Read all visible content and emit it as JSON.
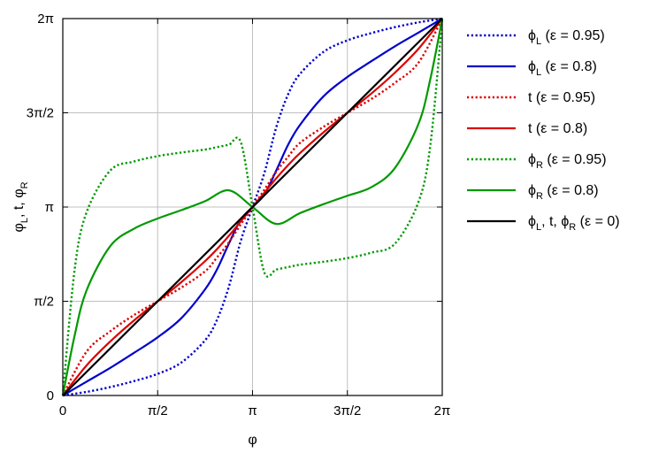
{
  "chart_data": {
    "type": "line",
    "xlabel": "φ",
    "ylabel": {
      "main": "φ",
      "sub1": "L",
      "mid": ", t, φ",
      "sub2": "R"
    },
    "xlim": [
      0,
      6.283185307
    ],
    "ylim": [
      0,
      6.283185307
    ],
    "grid": true,
    "legend_position": "right, outside plot",
    "x_ticks": [
      {
        "value": 0,
        "label": "0"
      },
      {
        "value": 1.570796327,
        "label": "π/2"
      },
      {
        "value": 3.141592654,
        "label": "π"
      },
      {
        "value": 4.71238898,
        "label": "3π/2"
      },
      {
        "value": 6.283185307,
        "label": "2π"
      }
    ],
    "y_ticks": [
      {
        "value": 0,
        "label": "0"
      },
      {
        "value": 1.570796327,
        "label": "π/2"
      },
      {
        "value": 3.141592654,
        "label": "π"
      },
      {
        "value": 4.71238898,
        "label": "3π/2"
      },
      {
        "value": 6.283185307,
        "label": "2π"
      }
    ],
    "series": [
      {
        "name": "φL (ε = 0.95)",
        "legend": {
          "sym": "ϕ",
          "sub": "L",
          "rest": "  (ε = 0.95)"
        },
        "color": "#0000cc",
        "dash": "dotted",
        "x": [
          0,
          0.3927,
          0.7854,
          1.1781,
          1.5708,
          1.9635,
          2.3562,
          2.5525,
          2.7489,
          2.9452,
          3.1416,
          3.3379,
          3.5343,
          3.7306,
          3.927,
          4.3197,
          4.7124,
          5.1051,
          5.4978,
          5.8905,
          6.2832
        ],
        "y": [
          0,
          0.06,
          0.14,
          0.24,
          0.36,
          0.55,
          0.92,
          1.26,
          1.81,
          2.57,
          3.1416,
          3.71,
          4.47,
          5.02,
          5.36,
          5.73,
          5.92,
          6.04,
          6.14,
          6.22,
          6.2832
        ]
      },
      {
        "name": "φL (ε = 0.8)",
        "legend": {
          "sym": "ϕ",
          "sub": "L",
          "rest": "  (ε = 0.8)"
        },
        "color": "#0000cc",
        "dash": "solid",
        "x": [
          0,
          0.3927,
          0.7854,
          1.1781,
          1.5708,
          1.9635,
          2.3562,
          2.5525,
          2.7489,
          2.9452,
          3.1416,
          3.3379,
          3.5343,
          3.7306,
          3.927,
          4.3197,
          4.7124,
          5.1051,
          5.4978,
          5.8905,
          6.2832
        ],
        "y": [
          0,
          0.23,
          0.46,
          0.71,
          0.97,
          1.29,
          1.77,
          2.1,
          2.53,
          2.93,
          3.1416,
          3.35,
          3.75,
          4.18,
          4.51,
          4.99,
          5.31,
          5.57,
          5.82,
          6.05,
          6.2832
        ]
      },
      {
        "name": "t (ε = 0.95)",
        "legend": {
          "sym": "t",
          "sub": "",
          "rest": "  (ε = 0.95)"
        },
        "color": "#dd0000",
        "dash": "dotted",
        "x": [
          0,
          0.3927,
          0.7854,
          1.1781,
          1.5708,
          1.9635,
          2.3562,
          2.5525,
          2.7489,
          2.9452,
          3.1416,
          3.3379,
          3.5343,
          3.7306,
          3.927,
          4.3197,
          4.7124,
          5.1051,
          5.4978,
          5.8905,
          6.2832
        ],
        "y": [
          0,
          0.73,
          1.07,
          1.34,
          1.5708,
          1.8,
          2.07,
          2.3,
          2.55,
          2.85,
          3.1416,
          3.43,
          3.73,
          3.98,
          4.21,
          4.48,
          4.7124,
          4.94,
          5.21,
          5.55,
          6.2832
        ]
      },
      {
        "name": "t (ε = 0.8)",
        "legend": {
          "sym": "t",
          "sub": "",
          "rest": "  (ε = 0.8)"
        },
        "color": "#dd0000",
        "dash": "solid",
        "x": [
          0,
          0.3927,
          0.7854,
          1.1781,
          1.5708,
          1.9635,
          2.3562,
          2.5525,
          2.7489,
          2.9452,
          3.1416,
          3.3379,
          3.5343,
          3.7306,
          3.927,
          4.3197,
          4.7124,
          5.1051,
          5.4978,
          5.8905,
          6.2832
        ],
        "y": [
          0,
          0.5,
          0.9,
          1.25,
          1.5708,
          1.89,
          2.24,
          2.44,
          2.66,
          2.9,
          3.1416,
          3.38,
          3.62,
          3.84,
          4.04,
          4.39,
          4.7124,
          5.03,
          5.38,
          5.78,
          6.2832
        ]
      },
      {
        "name": "φR (ε = 0.95)",
        "legend": {
          "sym": "ϕ",
          "sub": "R",
          "rest": "  (ε = 0.95)"
        },
        "color": "#009900",
        "dash": "dotted",
        "x": [
          0,
          0.1963,
          0.3927,
          0.7854,
          1.1781,
          1.5708,
          1.9635,
          2.3562,
          2.5525,
          2.7489,
          2.9452,
          3.1416,
          3.3379,
          3.5343,
          3.7306,
          3.927,
          4.3197,
          4.7124,
          5.1051,
          5.4978,
          5.8905,
          6.0868,
          6.2832
        ],
        "y": [
          0,
          2.1,
          3.05,
          3.75,
          3.9,
          3.99,
          4.05,
          4.1,
          4.14,
          4.18,
          4.23,
          3.1416,
          2.05,
          2.1,
          2.14,
          2.18,
          2.23,
          2.29,
          2.38,
          2.53,
          3.23,
          4.18,
          6.2832
        ]
      },
      {
        "name": "φR (ε = 0.8)",
        "legend": {
          "sym": "ϕ",
          "sub": "R",
          "rest": "  (ε = 0.8)"
        },
        "color": "#009900",
        "dash": "solid",
        "x": [
          0,
          0.1963,
          0.3927,
          0.7854,
          1.1781,
          1.5708,
          1.9635,
          2.3562,
          2.7489,
          3.1416,
          3.5343,
          3.927,
          4.3197,
          4.7124,
          5.1051,
          5.4978,
          5.8905,
          6.0868,
          6.2832
        ],
        "y": [
          0,
          1.0,
          1.75,
          2.49,
          2.78,
          2.95,
          3.09,
          3.24,
          3.42,
          3.1416,
          2.86,
          3.04,
          3.19,
          3.33,
          3.47,
          3.79,
          4.53,
          5.28,
          6.2832
        ]
      },
      {
        "name": "φL, t, φR (ε = 0)",
        "legend": {
          "sym": "ϕ",
          "sub": "L",
          "rest": ", t, ϕ",
          "sub2": "R",
          "rest2": "  (ε = 0)"
        },
        "color": "#000000",
        "dash": "solid",
        "x": [
          0,
          6.2832
        ],
        "y": [
          0,
          6.2832
        ]
      }
    ]
  }
}
